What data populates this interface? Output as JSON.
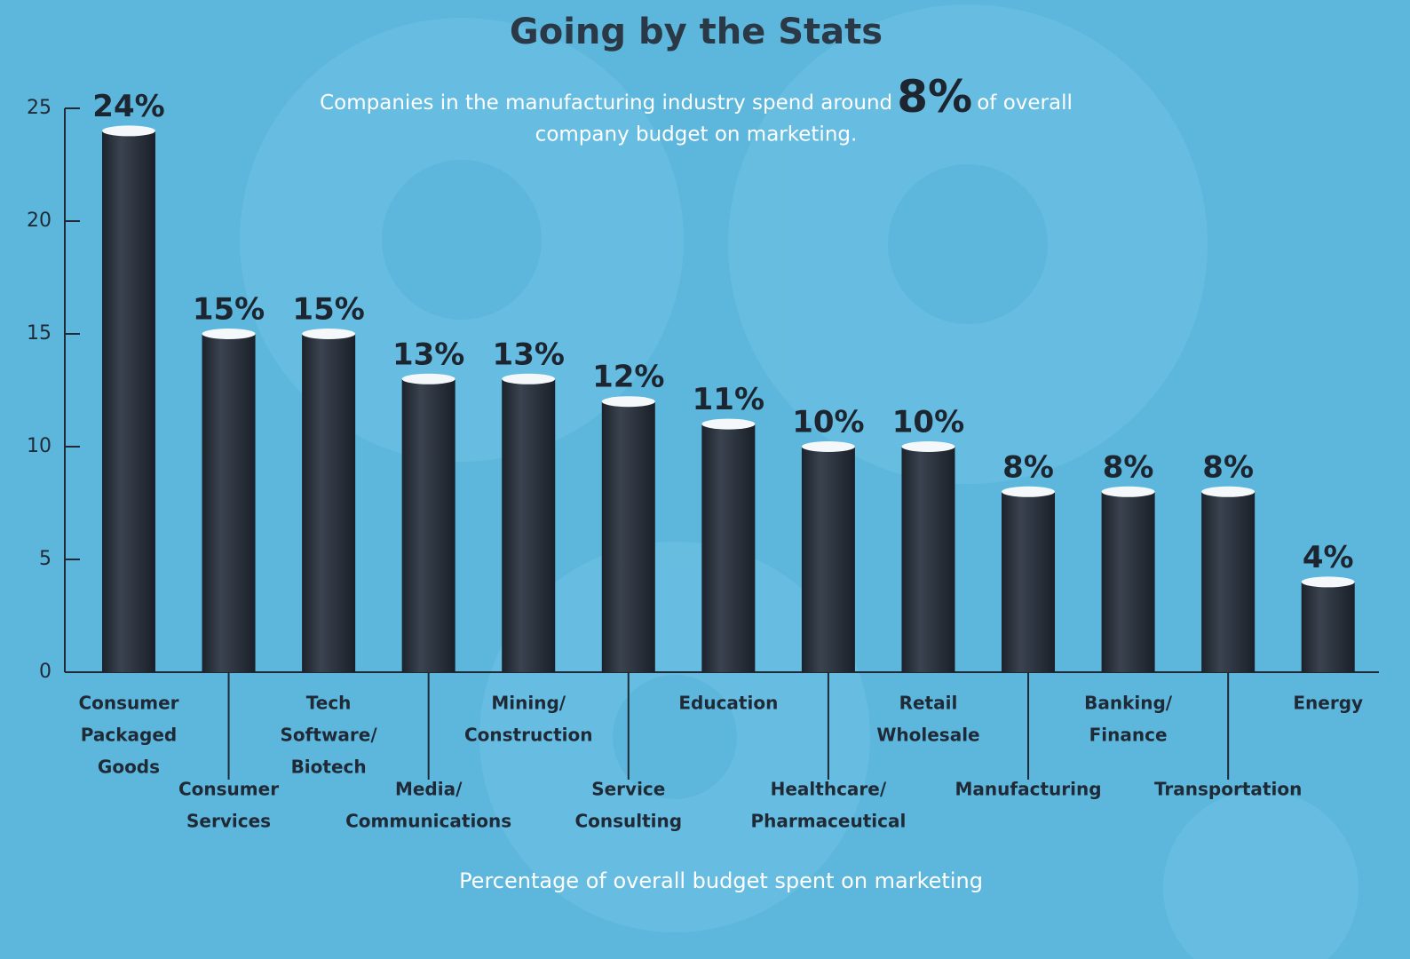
{
  "chart_data": {
    "type": "bar",
    "title": "Going by the Stats",
    "subtitle": [
      "Companies in the manufacturing industry spend around",
      "8%",
      "of overall",
      "company budget on marketing."
    ],
    "x_label": "Percentage of overall budget spent on marketing",
    "categories": [
      [
        "Consumer",
        "Packaged",
        "Goods"
      ],
      [
        "Consumer",
        "Services"
      ],
      [
        "Tech",
        "Software/",
        "Biotech"
      ],
      [
        "Media/",
        "Communications"
      ],
      [
        "Mining/",
        "Construction"
      ],
      [
        "Service",
        "Consulting"
      ],
      [
        "Education"
      ],
      [
        "Healthcare/",
        "Pharmaceutical"
      ],
      [
        "Retail",
        "Wholesale"
      ],
      [
        "Manufacturing"
      ],
      [
        "Banking/",
        "Finance"
      ],
      [
        "Transportation"
      ],
      [
        "Energy"
      ]
    ],
    "values": [
      24,
      15,
      15,
      13,
      13,
      12,
      11,
      10,
      10,
      8,
      8,
      8,
      4
    ],
    "value_labels": [
      "24%",
      "15%",
      "15%",
      "13%",
      "13%",
      "12%",
      "11%",
      "10%",
      "10%",
      "8%",
      "8%",
      "8%",
      "4%"
    ],
    "color": "#2a323d",
    "ylim": [
      0,
      25
    ],
    "yticks": [
      0,
      5,
      10,
      15,
      20,
      25
    ]
  }
}
